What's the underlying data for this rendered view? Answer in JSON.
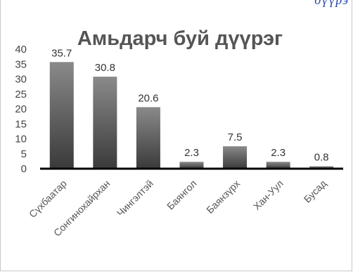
{
  "corner_text": "дүүрэ",
  "chart_data": {
    "type": "bar",
    "title": "Амьдарч буй дүүрэг",
    "categories": [
      "Сүхбаатар",
      "Сонгинохайрхан",
      "Чингэлтэй",
      "Баянгол",
      "Баянзүрх",
      "Хан-Уул",
      "Бусад"
    ],
    "values": [
      35.7,
      30.8,
      20.6,
      2.3,
      7.5,
      2.3,
      0.8
    ],
    "data_labels": [
      "35.7",
      "30.8",
      "20.6",
      "2.3",
      "7.5",
      "2.3",
      "0.8"
    ],
    "y_ticks": [
      0,
      5,
      10,
      15,
      20,
      25,
      30,
      35,
      40
    ],
    "ylim": [
      0,
      40
    ],
    "grid": false,
    "legend": "none",
    "colors": {
      "bar_top": "#8a8a8a",
      "bar_bottom": "#3a3a3a",
      "axis": "#000000"
    }
  }
}
